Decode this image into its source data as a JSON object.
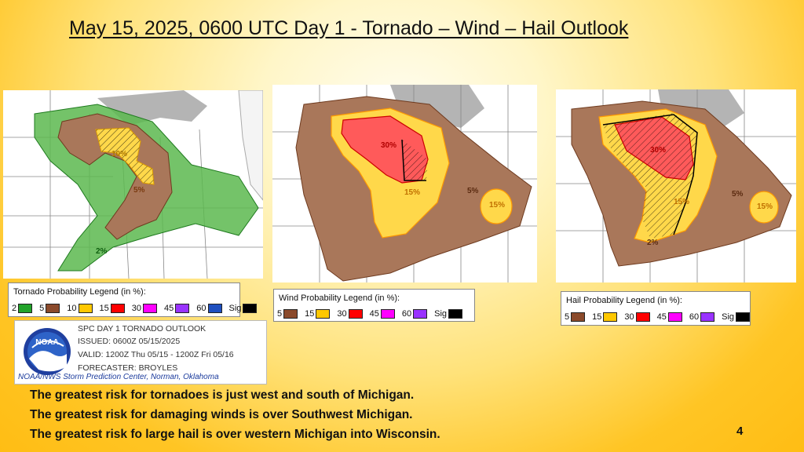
{
  "slide": {
    "title": "May 15, 2025, 0600 UTC Day 1 - Tornado – Wind – Hail Outlook",
    "page_number": "4"
  },
  "maps": {
    "tornado": {
      "labels": [
        "10%",
        "5%",
        "2%"
      ]
    },
    "wind": {
      "labels": [
        "30%",
        "15%",
        "5%",
        "15%"
      ]
    },
    "hail": {
      "labels": [
        "30%",
        "15%",
        "5%",
        "15%",
        "2%"
      ]
    }
  },
  "legends": {
    "tornado": {
      "title": "Tornado Probability Legend (in %):",
      "items": [
        {
          "label": "2",
          "color": "#22a32a"
        },
        {
          "label": "5",
          "color": "#8b4a2b"
        },
        {
          "label": "10",
          "color": "#ffc800"
        },
        {
          "label": "15",
          "color": "#ff0000"
        },
        {
          "label": "30",
          "color": "#ff00ff"
        },
        {
          "label": "45",
          "color": "#9933ff"
        },
        {
          "label": "60",
          "color": "#1f4fbf"
        },
        {
          "label": "Sig",
          "color": "#000000"
        }
      ]
    },
    "wind": {
      "title": "Wind Probability Legend (in %):",
      "items": [
        {
          "label": "5",
          "color": "#8b4a2b"
        },
        {
          "label": "15",
          "color": "#ffc800"
        },
        {
          "label": "30",
          "color": "#ff0000"
        },
        {
          "label": "45",
          "color": "#ff00ff"
        },
        {
          "label": "60",
          "color": "#9933ff"
        },
        {
          "label": "Sig",
          "color": "#000000"
        }
      ]
    },
    "hail": {
      "title": "Hail Probability Legend (in %):",
      "items": [
        {
          "label": "5",
          "color": "#8b4a2b"
        },
        {
          "label": "15",
          "color": "#ffc800"
        },
        {
          "label": "30",
          "color": "#ff0000"
        },
        {
          "label": "45",
          "color": "#ff00ff"
        },
        {
          "label": "60",
          "color": "#9933ff"
        },
        {
          "label": "Sig",
          "color": "#000000"
        }
      ]
    }
  },
  "outlook_info": {
    "logo_text": "NOAA",
    "line1": "SPC DAY 1 TORNADO OUTLOOK",
    "line2": "ISSUED: 0600Z 05/15/2025",
    "line3": "VALID: 1200Z Thu 05/15 - 1200Z Fri 05/16",
    "line4": "FORECASTER: BROYLES",
    "footer": "NOAA/NWS Storm Prediction Center, Norman, Oklahoma"
  },
  "summary": [
    "The greatest risk for tornadoes is just west and south of Michigan.",
    "The greatest risk for damaging winds is over Southwest Michigan.",
    "The greatest risk fo large hail is over western Michigan into Wisconsin."
  ]
}
